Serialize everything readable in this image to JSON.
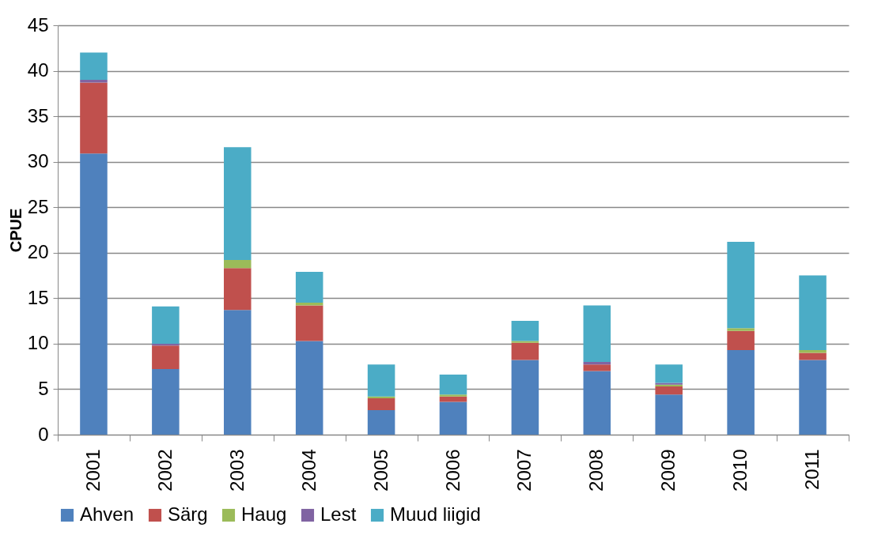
{
  "chart_data": {
    "type": "bar",
    "stacked": true,
    "ylabel": "CPUE",
    "categories": [
      "2001",
      "2002",
      "2003",
      "2004",
      "2005",
      "2006",
      "2007",
      "2008",
      "2009",
      "2010",
      "2011"
    ],
    "series": [
      {
        "name": "Ahven",
        "color": "#4f81bd",
        "values": [
          30.9,
          7.2,
          13.7,
          10.3,
          2.7,
          3.6,
          8.2,
          7.0,
          4.4,
          9.3,
          8.2
        ]
      },
      {
        "name": "Särg",
        "color": "#c0504d",
        "values": [
          7.8,
          2.6,
          4.6,
          3.9,
          1.3,
          0.6,
          1.9,
          0.7,
          0.9,
          2.1,
          0.8
        ]
      },
      {
        "name": "Haug",
        "color": "#9bbb59",
        "values": [
          0,
          0,
          0.9,
          0.3,
          0.2,
          0.2,
          0.2,
          0,
          0.2,
          0.3,
          0.3
        ]
      },
      {
        "name": "Lest",
        "color": "#8064a2",
        "values": [
          0.3,
          0.2,
          0,
          0,
          0,
          0,
          0,
          0.3,
          0.2,
          0,
          0
        ]
      },
      {
        "name": "Muud liigid",
        "color": "#4bacc6",
        "values": [
          3.0,
          4.1,
          12.4,
          3.4,
          3.5,
          2.2,
          2.2,
          6.2,
          2.0,
          9.5,
          8.2
        ]
      }
    ],
    "ylim": [
      0,
      45
    ],
    "yticks": [
      0,
      5,
      10,
      15,
      20,
      25,
      30,
      35,
      40,
      45
    ],
    "grid": "y",
    "legend": "bottom"
  }
}
